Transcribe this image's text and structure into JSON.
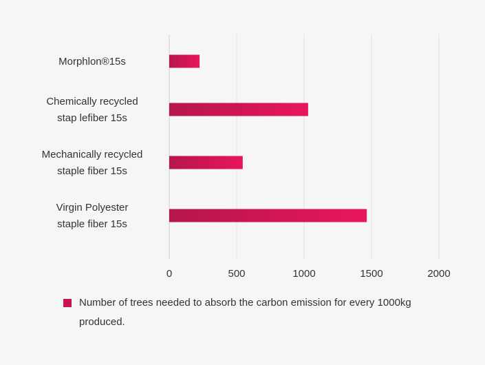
{
  "chart_data": {
    "type": "bar",
    "orientation": "horizontal",
    "categories": [
      [
        "Morphlon®15s"
      ],
      [
        "Chemically recycled",
        "stap lefiber 15s"
      ],
      [
        "Mechanically recycled",
        "staple fiber 15s"
      ],
      [
        "Virgin Polyester",
        "staple fiber 15s"
      ]
    ],
    "series": [
      {
        "name": "Number of trees needed to absorb the carbon emission for every 1000kg produced.",
        "values": [
          225,
          1030,
          545,
          1465
        ]
      }
    ],
    "xlim": [
      0,
      2000
    ],
    "xticks": [
      "0",
      "500",
      "1000",
      "1500",
      "2000"
    ],
    "grid": true,
    "legend_position": "bottom",
    "colors": {
      "bar_start": "#b5174a",
      "bar_end": "#e8165b",
      "legend": "#c8154e",
      "grid": "#e2e2e2",
      "axis": "#cfcfcf",
      "text": "#333333"
    }
  }
}
